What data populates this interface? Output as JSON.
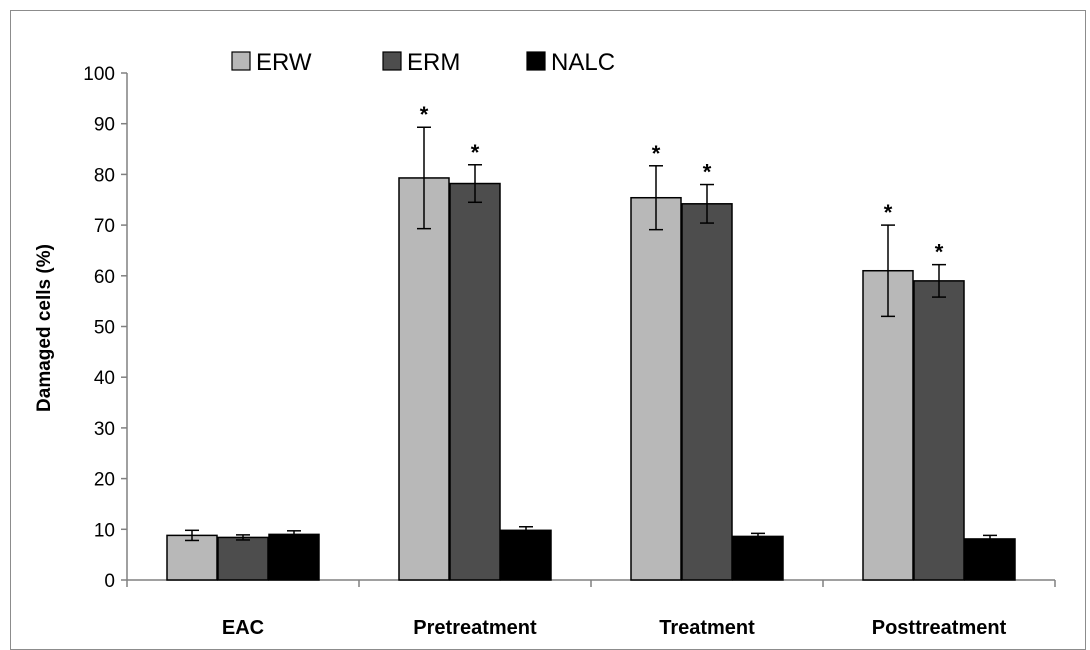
{
  "chart_data": {
    "type": "bar",
    "title": "",
    "xlabel": "",
    "ylabel": "Damaged cells (%)",
    "ylim": [
      0,
      100
    ],
    "yticks": [
      "0",
      "10",
      "20",
      "30",
      "40",
      "50",
      "60",
      "70",
      "80",
      "90",
      "100"
    ],
    "grid": false,
    "legend_position": "top",
    "categories": [
      "EAC",
      "Pretreatment",
      "Treatment",
      "Posttreatment"
    ],
    "series": [
      {
        "name": "ERW",
        "color": "#b8b8b8",
        "values": [
          8.8,
          79.3,
          75.4,
          61.0
        ],
        "errors": [
          1.0,
          10.0,
          6.3,
          9.0
        ],
        "annotations": [
          "",
          "*",
          "*",
          "*"
        ]
      },
      {
        "name": "ERM",
        "color": "#4d4d4d",
        "values": [
          8.4,
          78.2,
          74.2,
          59.0
        ],
        "errors": [
          0.5,
          3.7,
          3.8,
          3.2
        ],
        "annotations": [
          "",
          "*",
          "*",
          "*"
        ]
      },
      {
        "name": "NALC",
        "color": "#000000",
        "values": [
          9.0,
          9.8,
          8.6,
          8.1
        ],
        "errors": [
          0.7,
          0.7,
          0.6,
          0.7
        ],
        "annotations": [
          "",
          "",
          "",
          ""
        ]
      }
    ]
  }
}
